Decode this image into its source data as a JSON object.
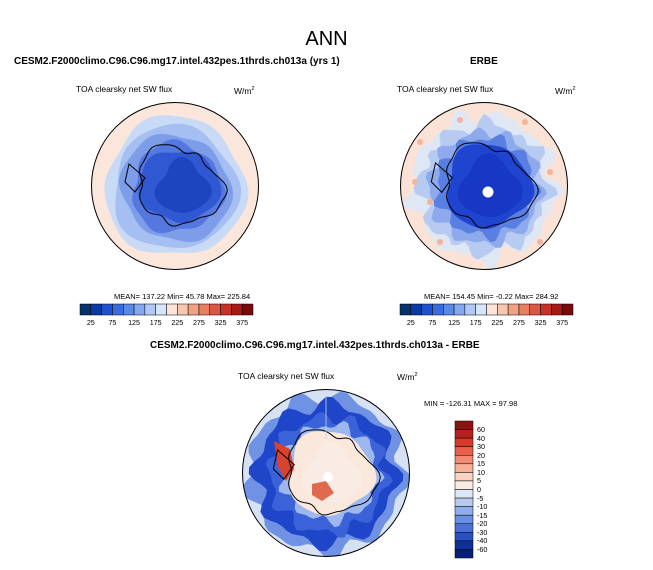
{
  "main_title": "ANN",
  "chart_data": [
    {
      "type": "heatmap",
      "projection": "south-polar-stereographic",
      "title": "CESM2.F2000climo.C96.C96.mg17.intel.432pes.1thrds.ch013a (yrs 1)",
      "left_label": "TOA clearsky net SW flux",
      "right_label": "W/m",
      "units_sup": "2",
      "stats": "MEAN= 137.22   Min=  45.78   Max= 225.84",
      "colorbar_ticks": [
        "25",
        "75",
        "125",
        "175",
        "225",
        "275",
        "325",
        "375"
      ],
      "colors": [
        "#08306b",
        "#0d3aa0",
        "#1f50d0",
        "#3a6ce0",
        "#5a8ae8",
        "#84a8ee",
        "#b2c8f4",
        "#d8e4f8",
        "#fbe4d8",
        "#f6c6ae",
        "#f0a386",
        "#e87d62",
        "#db5643",
        "#c8312a",
        "#a81a18",
        "#7a0a0a"
      ],
      "polar_hole": false
    },
    {
      "type": "heatmap",
      "projection": "south-polar-stereographic",
      "title": "ERBE",
      "left_label": "TOA clearsky net SW flux",
      "right_label": "W/m",
      "units_sup": "2",
      "stats": "MEAN= 154.45   Min=  -0.22   Max= 284.92",
      "colorbar_ticks": [
        "25",
        "75",
        "125",
        "175",
        "225",
        "275",
        "325",
        "375"
      ],
      "colors": [
        "#08306b",
        "#0d3aa0",
        "#1f50d0",
        "#3a6ce0",
        "#5a8ae8",
        "#84a8ee",
        "#b2c8f4",
        "#d8e4f8",
        "#fbe4d8",
        "#f6c6ae",
        "#f0a386",
        "#e87d62",
        "#db5643",
        "#c8312a",
        "#a81a18",
        "#7a0a0a"
      ],
      "polar_hole": true
    },
    {
      "type": "heatmap",
      "projection": "south-polar-stereographic",
      "title": "CESM2.F2000climo.C96.C96.mg17.intel.432pes.1thrds.ch013a - ERBE",
      "left_label": "TOA clearsky net SW flux",
      "right_label": "W/m",
      "units_sup": "2",
      "stats": "MIN = -126.31  MAX =   97.98",
      "colorbar_ticks": [
        "60",
        "40",
        "30",
        "20",
        "15",
        "10",
        "5",
        "0",
        "-5",
        "-10",
        "-15",
        "-20",
        "-30",
        "-40",
        "-60"
      ],
      "colors": [
        "#8e1010",
        "#b51f1f",
        "#d63a2a",
        "#e8604a",
        "#f18a70",
        "#f8b198",
        "#fbd3c2",
        "#f8ece4",
        "#dce7f3",
        "#b5cbee",
        "#8eadea",
        "#6a8ee2",
        "#4a70d6",
        "#2a50c4",
        "#10309a",
        "#06207a"
      ],
      "polar_hole": true
    }
  ]
}
